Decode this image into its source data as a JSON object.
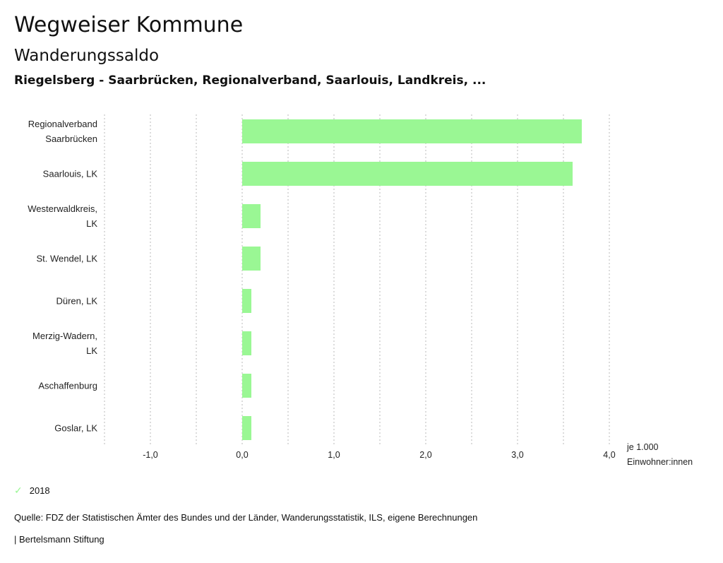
{
  "header": {
    "title": "Wegweiser Kommune",
    "subtitle": "Wanderungssaldo",
    "regions": "Riegelsberg - Saarbrücken, Regionalverband, Saarlouis, Landkreis, ..."
  },
  "chart_data": {
    "type": "bar",
    "orientation": "horizontal",
    "title": "Wanderungssaldo",
    "categories": [
      [
        "Regionalverband",
        "Saarbrücken"
      ],
      [
        "Saarlouis, LK"
      ],
      [
        "Westerwaldkreis,",
        "LK"
      ],
      [
        "St. Wendel, LK"
      ],
      [
        "Düren, LK"
      ],
      [
        "Merzig-Wadern,",
        "LK"
      ],
      [
        "Aschaffenburg"
      ],
      [
        "Goslar, LK"
      ]
    ],
    "series": [
      {
        "name": "2018",
        "color": "#9af794",
        "values": [
          3.7,
          3.6,
          0.2,
          0.2,
          0.1,
          0.1,
          0.1,
          0.1
        ]
      }
    ],
    "xlim": [
      -1.5,
      4.0
    ],
    "x_ticks": [
      -1.0,
      0.0,
      1.0,
      2.0,
      3.0,
      4.0
    ],
    "x_tick_labels": [
      "-1,0",
      "0,0",
      "1,0",
      "2,0",
      "3,0",
      "4,0"
    ],
    "grid_step": 0.5,
    "grid": true,
    "xlabel": [
      "je 1.000",
      "Einwohner:innen"
    ],
    "ylabel": "",
    "legend_position": "bottom-left"
  },
  "legend": {
    "items": [
      {
        "label": "2018",
        "icon": "check-icon",
        "color": "#9af794"
      }
    ]
  },
  "footer": {
    "source": "Quelle: FDZ der Statistischen Ämter des Bundes und der Länder, Wanderungsstatistik, ILS, eigene Berechnungen",
    "credit": "| Bertelsmann Stiftung"
  }
}
